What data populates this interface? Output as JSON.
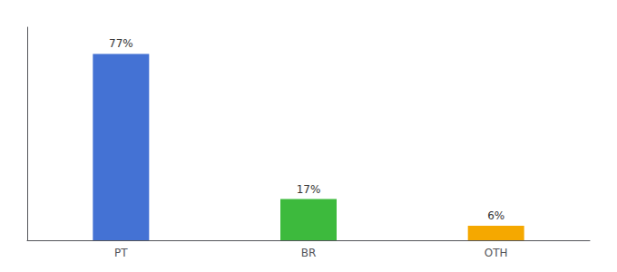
{
  "chart_data": {
    "type": "bar",
    "categories": [
      "PT",
      "BR",
      "OTH"
    ],
    "values": [
      77,
      17,
      6
    ],
    "value_labels": [
      "77%",
      "17%",
      "6%"
    ],
    "data_labels": true,
    "colors": [
      "#4472d4",
      "#3dba3d",
      "#f5a800"
    ],
    "ylim": [
      0,
      88
    ],
    "tick_labels": "x",
    "grid": false
  }
}
